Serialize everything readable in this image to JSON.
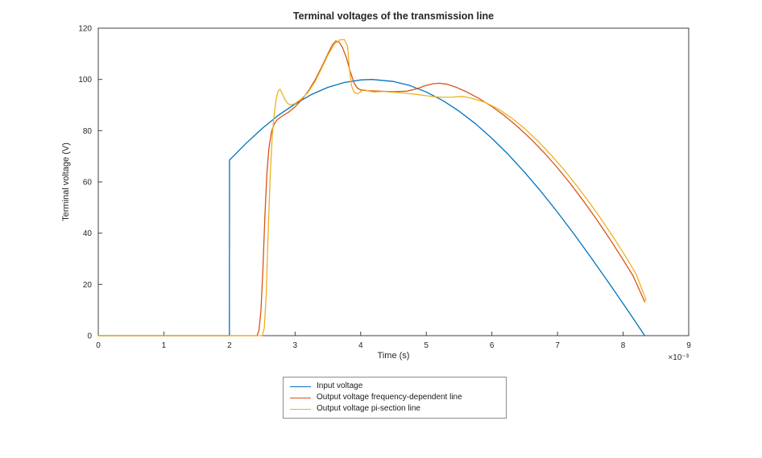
{
  "page": {
    "background": "#ffffff"
  },
  "chart_data": {
    "type": "line",
    "title": "Terminal voltages of the transmission line",
    "xlabel": "Time (s)",
    "ylabel": "Terminal voltage (V)",
    "x_multiplier": "×10⁻³",
    "xlim": [
      0,
      9
    ],
    "ylim": [
      0,
      120
    ],
    "xticks": [
      0,
      1,
      2,
      3,
      4,
      5,
      6,
      7,
      8,
      9
    ],
    "yticks": [
      0,
      20,
      40,
      60,
      80,
      100,
      120
    ],
    "grid": false,
    "legend_position": "below-plot-center",
    "axis_color": "#404040",
    "series": [
      {
        "name": "Input voltage",
        "color": "#0072BD",
        "points": [
          [
            0,
            0
          ],
          [
            1.999,
            0
          ],
          [
            2,
            68.5
          ],
          [
            2.25,
            75
          ],
          [
            2.5,
            80.9
          ],
          [
            2.75,
            86.1
          ],
          [
            3,
            90.4
          ],
          [
            3.25,
            94.1
          ],
          [
            3.5,
            96.9
          ],
          [
            3.75,
            98.8
          ],
          [
            4,
            99.8
          ],
          [
            4.17,
            100
          ],
          [
            4.5,
            99.2
          ],
          [
            4.75,
            97.6
          ],
          [
            5,
            95.1
          ],
          [
            5.25,
            91.8
          ],
          [
            5.5,
            87.6
          ],
          [
            5.75,
            82.7
          ],
          [
            6,
            77
          ],
          [
            6.25,
            70.7
          ],
          [
            6.5,
            63.7
          ],
          [
            6.75,
            56.2
          ],
          [
            7,
            48.2
          ],
          [
            7.25,
            39.7
          ],
          [
            7.5,
            30.9
          ],
          [
            7.75,
            21.8
          ],
          [
            8,
            12.5
          ],
          [
            8.2,
            5
          ],
          [
            8.33,
            0
          ]
        ]
      },
      {
        "name": "Output voltage frequency-dependent line",
        "color": "#D95319",
        "points": [
          [
            0,
            0
          ],
          [
            2.42,
            0
          ],
          [
            2.45,
            2
          ],
          [
            2.48,
            10
          ],
          [
            2.51,
            26
          ],
          [
            2.54,
            47
          ],
          [
            2.57,
            63
          ],
          [
            2.6,
            73
          ],
          [
            2.64,
            79.5
          ],
          [
            2.68,
            82.5
          ],
          [
            2.73,
            84.3
          ],
          [
            2.8,
            85.6
          ],
          [
            2.9,
            87.2
          ],
          [
            3,
            89.3
          ],
          [
            3.1,
            92
          ],
          [
            3.2,
            95.4
          ],
          [
            3.3,
            99.6
          ],
          [
            3.4,
            104.6
          ],
          [
            3.5,
            110
          ],
          [
            3.57,
            113.6
          ],
          [
            3.62,
            115
          ],
          [
            3.67,
            114.6
          ],
          [
            3.72,
            112.6
          ],
          [
            3.78,
            108.6
          ],
          [
            3.84,
            103.2
          ],
          [
            3.9,
            98.6
          ],
          [
            3.95,
            96.6
          ],
          [
            4,
            95.9
          ],
          [
            4.1,
            95.6
          ],
          [
            4.3,
            95.4
          ],
          [
            4.5,
            95.2
          ],
          [
            4.7,
            95.4
          ],
          [
            4.85,
            96.3
          ],
          [
            5,
            97.7
          ],
          [
            5.1,
            98.3
          ],
          [
            5.2,
            98.5
          ],
          [
            5.32,
            98.1
          ],
          [
            5.45,
            97
          ],
          [
            5.6,
            95.3
          ],
          [
            5.8,
            92.6
          ],
          [
            6,
            89.4
          ],
          [
            6.2,
            85.7
          ],
          [
            6.4,
            81.4
          ],
          [
            6.6,
            76.6
          ],
          [
            6.8,
            71.3
          ],
          [
            7,
            65.5
          ],
          [
            7.2,
            59.2
          ],
          [
            7.4,
            52.4
          ],
          [
            7.6,
            45.2
          ],
          [
            7.8,
            37.6
          ],
          [
            8,
            29.6
          ],
          [
            8.15,
            23.4
          ],
          [
            8.33,
            13.2
          ]
        ]
      },
      {
        "name": "Output voltage pi-section line",
        "color": "#EDB120",
        "points": [
          [
            0,
            0
          ],
          [
            2.5,
            0
          ],
          [
            2.53,
            3
          ],
          [
            2.56,
            16
          ],
          [
            2.59,
            40
          ],
          [
            2.62,
            62
          ],
          [
            2.65,
            77
          ],
          [
            2.68,
            86
          ],
          [
            2.71,
            92
          ],
          [
            2.74,
            95.5
          ],
          [
            2.77,
            96.2
          ],
          [
            2.8,
            94.8
          ],
          [
            2.84,
            92.4
          ],
          [
            2.88,
            90.8
          ],
          [
            2.93,
            90
          ],
          [
            3,
            90.6
          ],
          [
            3.1,
            92.5
          ],
          [
            3.2,
            95
          ],
          [
            3.3,
            99
          ],
          [
            3.4,
            104
          ],
          [
            3.5,
            109.5
          ],
          [
            3.6,
            113.8
          ],
          [
            3.68,
            115.4
          ],
          [
            3.75,
            115.6
          ],
          [
            3.8,
            113
          ],
          [
            3.83,
            104
          ],
          [
            3.86,
            97.5
          ],
          [
            3.9,
            95
          ],
          [
            3.95,
            94.4
          ],
          [
            4,
            95.2
          ],
          [
            4.05,
            96
          ],
          [
            4.1,
            95.6
          ],
          [
            4.2,
            95.1
          ],
          [
            4.35,
            95.3
          ],
          [
            4.5,
            95
          ],
          [
            4.65,
            94.7
          ],
          [
            4.8,
            94.3
          ],
          [
            4.95,
            93.8
          ],
          [
            5.1,
            93.3
          ],
          [
            5.25,
            93
          ],
          [
            5.4,
            93.1
          ],
          [
            5.55,
            93.4
          ],
          [
            5.7,
            92.6
          ],
          [
            5.9,
            91
          ],
          [
            6.1,
            88.4
          ],
          [
            6.3,
            85
          ],
          [
            6.5,
            80.8
          ],
          [
            6.7,
            76
          ],
          [
            6.9,
            70.6
          ],
          [
            7.1,
            64.7
          ],
          [
            7.3,
            58.3
          ],
          [
            7.5,
            51.5
          ],
          [
            7.7,
            44.2
          ],
          [
            7.9,
            36.5
          ],
          [
            8.05,
            30.4
          ],
          [
            8.2,
            24
          ],
          [
            8.35,
            13.8
          ]
        ]
      }
    ]
  }
}
